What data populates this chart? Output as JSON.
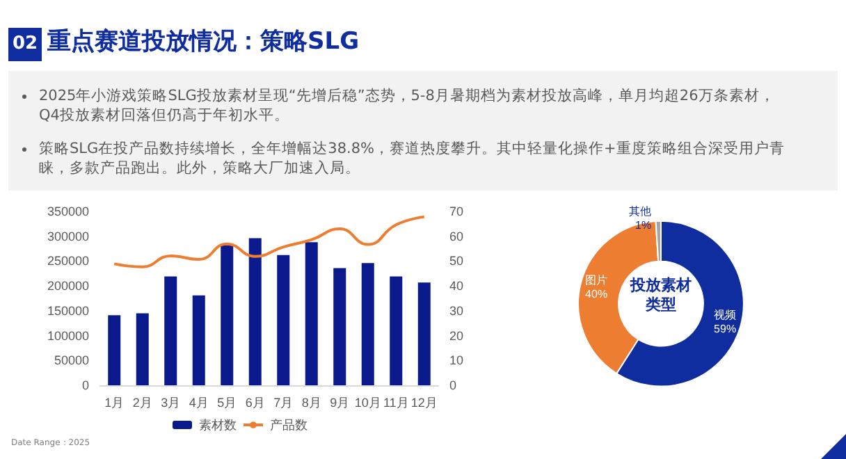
{
  "chart_data": [
    {
      "type": "bar",
      "title": "重点赛道投放情况：策略SLG",
      "annotations": [
        "02",
        "2025年小游戏策略SLG投放素材呈现“先增后稳”态势，5-8月暑期档为素材投放高峰，单月均超26万条素材，Q4投放素材回落但仍高于年初水平。",
        "策略SLG在投产品数持续增长，全年增幅达38.8%，赛道热度攀升。其中轻量化操作+重度策略组合深受用户青睐，多款产品跑出。此外，策略大厂加速入局。",
        "Date Range：2025"
      ],
      "categories": [
        "1月",
        "2月",
        "3月",
        "4月",
        "5月",
        "6月",
        "7月",
        "8月",
        "9月",
        "10月",
        "11月",
        "12月"
      ],
      "series": [
        {
          "name": "素材数",
          "color": "#0a1a8c",
          "values": [
            141000,
            145000,
            219000,
            181000,
            282000,
            296000,
            262000,
            288000,
            236000,
            246000,
            219000,
            207000
          ]
        },
        {
          "name": "产品数",
          "type": "line",
          "axis": "y2",
          "color": "#ed7d31",
          "values": [
            48.9,
            47.7,
            52.1,
            50.7,
            56.9,
            51.9,
            55.7,
            58.6,
            63.0,
            56.7,
            64.6,
            67.8
          ]
        }
      ],
      "ylim": [
        0,
        350000
      ],
      "yticks": [
        0,
        50000,
        100000,
        150000,
        200000,
        250000,
        300000,
        350000
      ],
      "y2lim": [
        0,
        70
      ],
      "y2ticks": [
        0,
        10,
        20,
        30,
        40,
        50,
        60,
        70
      ],
      "grid": false,
      "legend": "bottom",
      "marker": "none",
      "line_style": "solid"
    },
    {
      "type": "donut",
      "title": "投放素材类型",
      "categories": [
        "视频",
        "图片",
        "其他"
      ],
      "values": [
        59,
        40,
        1
      ],
      "colors": [
        "#0f2d9e",
        "#ed7d31",
        "#a5a5a5"
      ],
      "value_labels": [
        "59%",
        "40%",
        "1%"
      ]
    }
  ]
}
